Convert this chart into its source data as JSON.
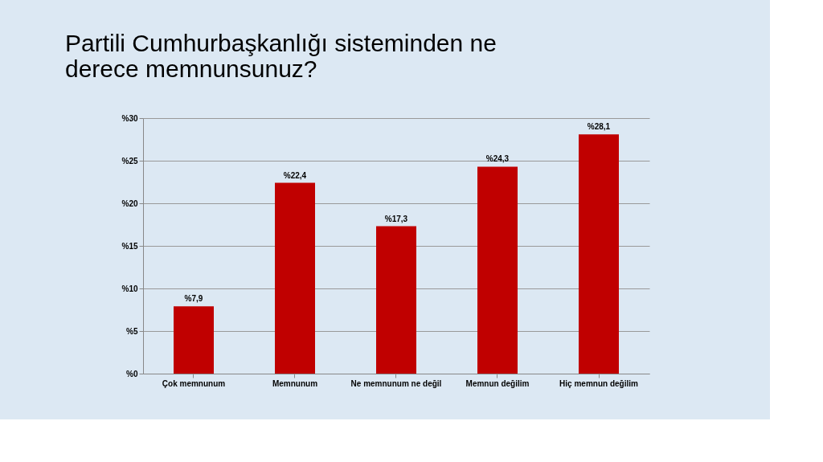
{
  "chart_data": {
    "type": "bar",
    "title": [
      "Partili Cumhurbaşkanlığı sisteminden ne",
      "derece memnunsunuz?"
    ],
    "categories": [
      "Çok memnunum",
      "Memnunum",
      "Ne memnunum ne değil",
      "Memnun değilim",
      "Hiç memnun değilim"
    ],
    "values": [
      7.9,
      22.4,
      17.3,
      24.3,
      28.1
    ],
    "value_labels": [
      "%7,9",
      "%22,4",
      "%17,3",
      "%24,3",
      "%28,1"
    ],
    "color": "#c00000",
    "ylim": [
      0,
      30
    ],
    "yticks": [
      {
        "value": 0,
        "label": "%0"
      },
      {
        "value": 5,
        "label": "%5"
      },
      {
        "value": 10,
        "label": "%10"
      },
      {
        "value": 15,
        "label": "%15"
      },
      {
        "value": 20,
        "label": "%20"
      },
      {
        "value": 25,
        "label": "%25"
      },
      {
        "value": 30,
        "label": "%30"
      }
    ],
    "grid": "y"
  }
}
